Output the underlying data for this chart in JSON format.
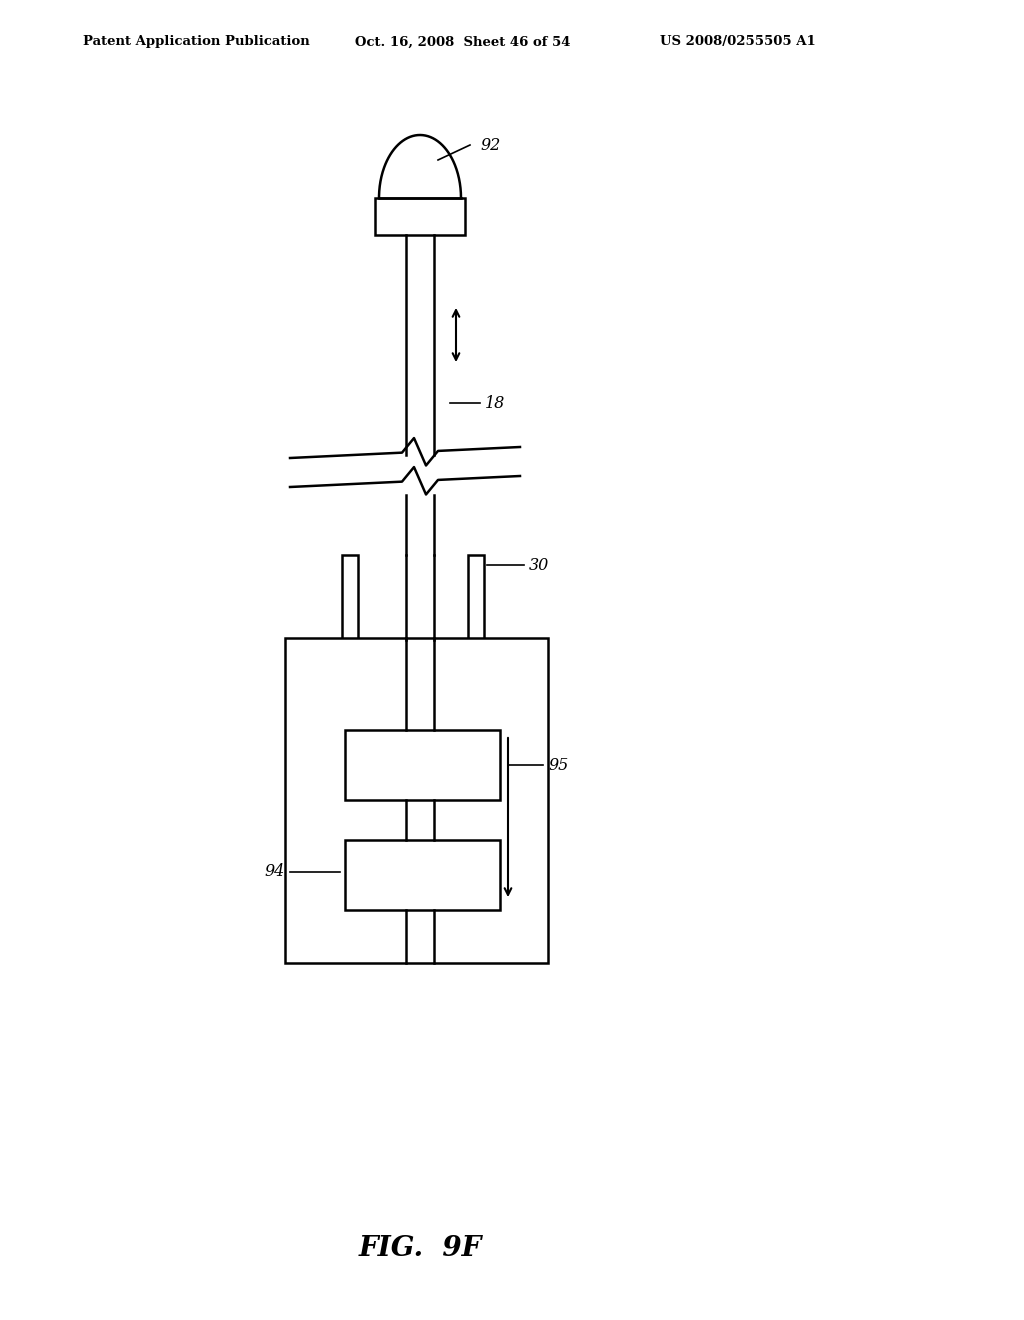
{
  "bg_color": "#ffffff",
  "line_color": "#000000",
  "header_left": "Patent Application Publication",
  "header_mid": "Oct. 16, 2008  Sheet 46 of 54",
  "header_right": "US 2008/0255505 A1",
  "fig_label": "FIG.  9F"
}
